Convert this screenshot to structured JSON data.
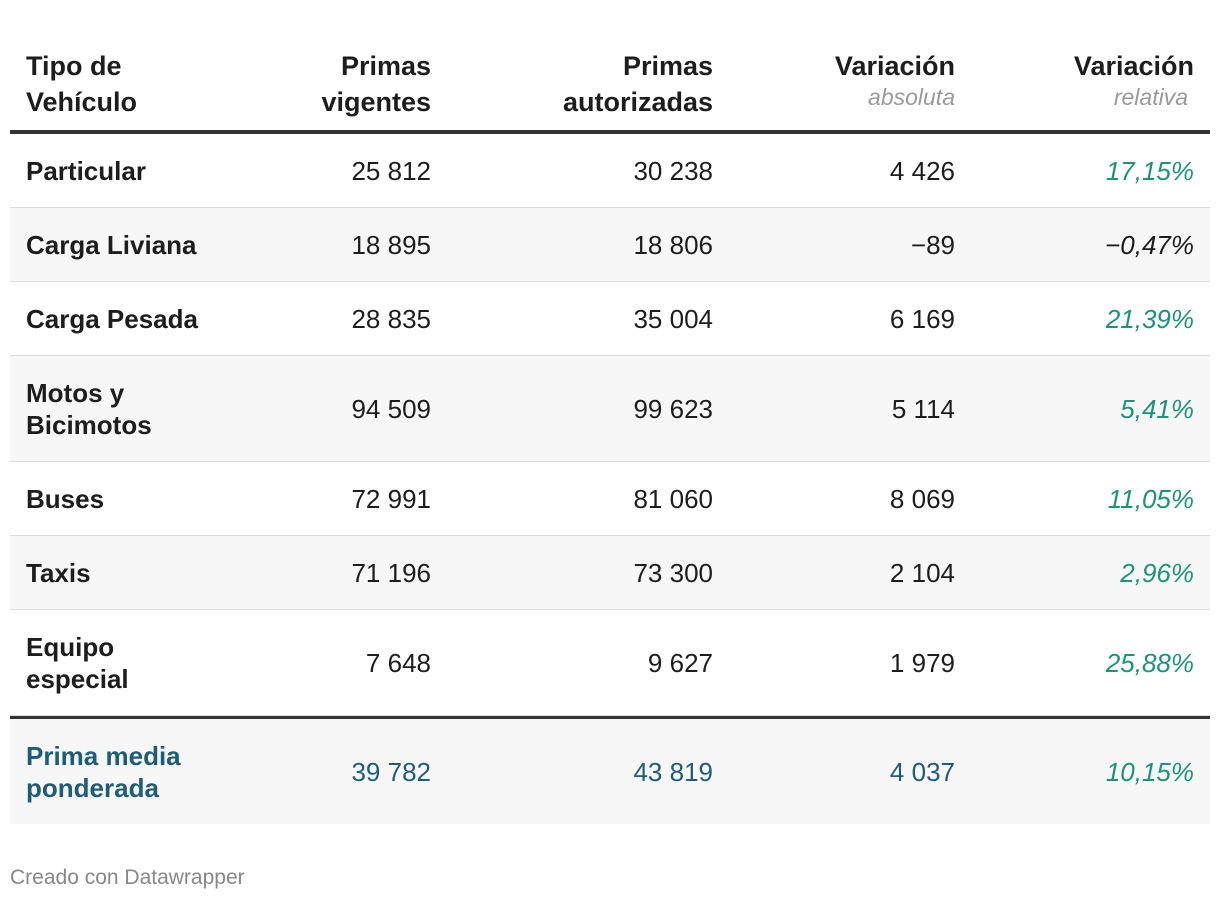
{
  "chart_data": {
    "type": "table",
    "columns": [
      {
        "line1": "Tipo de",
        "line2": "Vehículo",
        "sub": ""
      },
      {
        "line1": "Primas",
        "line2": "vigentes",
        "sub": ""
      },
      {
        "line1": "Primas",
        "line2": "autorizadas",
        "sub": ""
      },
      {
        "line1": "Variación",
        "line2": "",
        "sub": "absoluta"
      },
      {
        "line1": "Variación",
        "line2": "",
        "sub": "relativa"
      }
    ],
    "rows": [
      {
        "tipo": [
          "Particular"
        ],
        "vigentes": "25 812",
        "autorizadas": "30 238",
        "absoluta": "4 426",
        "relativa": "17,15%"
      },
      {
        "tipo": [
          "Carga Liviana"
        ],
        "vigentes": "18 895",
        "autorizadas": "18 806",
        "absoluta": "−89",
        "relativa": "−0,47%"
      },
      {
        "tipo": [
          "Carga Pesada"
        ],
        "vigentes": "28 835",
        "autorizadas": "35 004",
        "absoluta": "6 169",
        "relativa": "21,39%"
      },
      {
        "tipo": [
          "Motos y",
          "Bicimotos"
        ],
        "vigentes": "94 509",
        "autorizadas": "99 623",
        "absoluta": "5 114",
        "relativa": "5,41%"
      },
      {
        "tipo": [
          "Buses"
        ],
        "vigentes": "72 991",
        "autorizadas": "81 060",
        "absoluta": "8 069",
        "relativa": "11,05%"
      },
      {
        "tipo": [
          "Taxis"
        ],
        "vigentes": "71 196",
        "autorizadas": "73 300",
        "absoluta": "2 104",
        "relativa": "2,96%"
      },
      {
        "tipo": [
          "Equipo",
          "especial"
        ],
        "vigentes": "7 648",
        "autorizadas": "9 627",
        "absoluta": "1 979",
        "relativa": "25,88%"
      }
    ],
    "total": {
      "tipo": [
        "Prima media",
        "ponderada"
      ],
      "vigentes": "39 782",
      "autorizadas": "43 819",
      "absoluta": "4 037",
      "relativa": "10,15%"
    },
    "colors": {
      "positive": "#1a9577",
      "total": "#1d5d78"
    }
  },
  "footer": "Creado con Datawrapper"
}
